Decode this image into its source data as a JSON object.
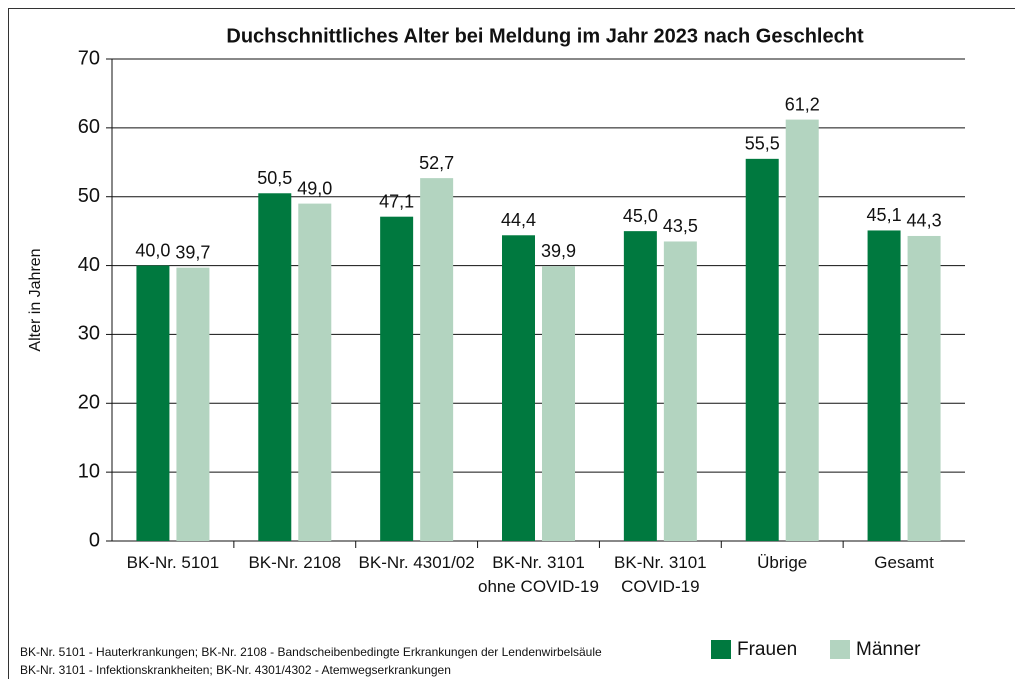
{
  "chart_data": {
    "type": "bar",
    "title": "Duchschnittliches Alter bei Meldung im Jahr 2023 nach Geschlecht",
    "y_label": "Alter in Jahren",
    "categories": [
      "BK-Nr. 5101",
      "BK-Nr. 2108",
      "BK-Nr. 4301/02",
      "BK-Nr. 3101\nohne COVID-19",
      "BK-Nr. 3101\nCOVID-19",
      "Übrige",
      "Gesamt"
    ],
    "series": [
      {
        "name": "Frauen",
        "color": "#00793f",
        "values": [
          40.0,
          50.5,
          47.1,
          44.4,
          45.0,
          55.5,
          45.1
        ],
        "value_labels": [
          "40,0",
          "50,5",
          "47,1",
          "44,4",
          "45,0",
          "55,5",
          "45,1"
        ]
      },
      {
        "name": "Männer",
        "color": "#b3d4c0",
        "values": [
          39.7,
          49.0,
          52.7,
          39.9,
          43.5,
          61.2,
          44.3
        ],
        "value_labels": [
          "39,7",
          "49,0",
          "52,7",
          "39,9",
          "43,5",
          "61,2",
          "44,3"
        ]
      }
    ],
    "ylim": [
      0,
      70
    ],
    "yticks": [
      0,
      10,
      20,
      30,
      40,
      50,
      60,
      70
    ],
    "grid": true,
    "legend": "bottom-right",
    "notes": [
      "BK-Nr. 5101 - Hauterkrankungen; BK-Nr. 2108 - Bandscheibenbedingte Erkrankungen der Lendenwirbelsäule",
      "BK-Nr. 3101 - Infektionskrankheiten; BK-Nr. 4301/4302 - Atemwegserkrankungen"
    ]
  }
}
